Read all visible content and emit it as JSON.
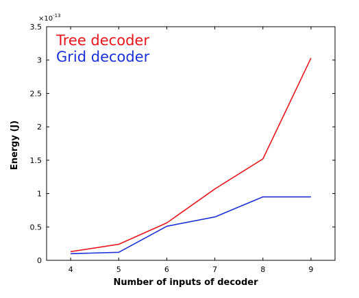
{
  "chart_data": {
    "type": "line",
    "title": "",
    "xlabel": "Number of inputs of decoder",
    "ylabel": "Energy (J)",
    "y_scale_label": "×10",
    "y_scale_exponent": "-13",
    "x": [
      4,
      5,
      6,
      7,
      8,
      9
    ],
    "xlim": [
      3.5,
      9.5
    ],
    "ylim": [
      0,
      3.5
    ],
    "x_ticks": [
      "4",
      "5",
      "6",
      "7",
      "8",
      "9"
    ],
    "y_ticks": [
      "0",
      "0.5",
      "1",
      "1.5",
      "2",
      "2.5",
      "3",
      "3.5"
    ],
    "y_tick_values": [
      0,
      0.5,
      1,
      1.5,
      2,
      2.5,
      3,
      3.5
    ],
    "legend_position": "top-left",
    "series": [
      {
        "name": "Tree decoder",
        "color": "#e8141c",
        "values": [
          0.13,
          0.24,
          0.56,
          1.07,
          1.52,
          3.03
        ]
      },
      {
        "name": "Grid decoder",
        "color": "#1a2fd6",
        "values": [
          0.1,
          0.12,
          0.51,
          0.65,
          0.95,
          0.95
        ]
      }
    ]
  }
}
